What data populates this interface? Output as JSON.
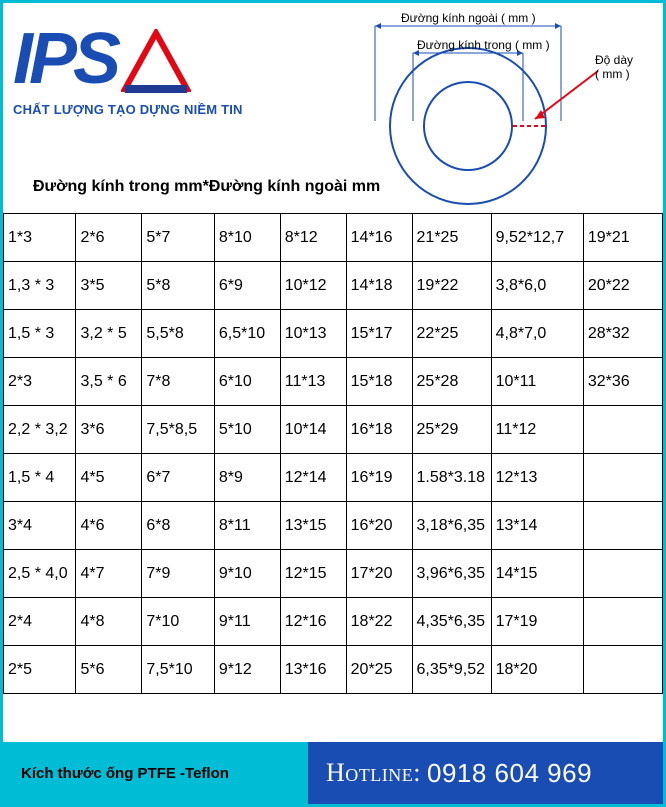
{
  "logo": {
    "text": "IPS",
    "tagline": "CHẤT LƯỢNG TẠO DỰNG NIỀM TIN",
    "logo_blue": "#1a4db3",
    "triangle_red": "#e30613",
    "triangle_blue": "#1f3a93"
  },
  "diagram": {
    "outer_label": "Đường kính ngoài ( mm )",
    "inner_label": "Đường kính trong ( mm )",
    "thickness_label_1": "Độ dày",
    "thickness_label_2": "( mm )",
    "stroke": "#1a4db3",
    "arrow_red": "#e30613",
    "dash_red": "#e30613"
  },
  "caption": "Đường kính trong mm*Đường kính ngoài mm",
  "table": {
    "rows": [
      [
        "1*3",
        "2*6",
        "5*7",
        "8*10",
        "8*12",
        "14*16",
        "21*25",
        "9,52*12,7",
        "19*21"
      ],
      [
        "1,3 * 3",
        "3*5",
        "5*8",
        "6*9",
        "10*12",
        "14*18",
        "19*22",
        "3,8*6,0",
        "20*22"
      ],
      [
        "1,5 * 3",
        "3,2 * 5",
        "5,5*8",
        "6,5*10",
        "10*13",
        "15*17",
        "22*25",
        "4,8*7,0",
        "28*32"
      ],
      [
        "2*3",
        "3,5 * 6",
        "7*8",
        "6*10",
        "11*13",
        "15*18",
        "25*28",
        "10*11",
        "32*36"
      ],
      [
        "2,2 * 3,2",
        "3*6",
        "7,5*8,5",
        "5*10",
        "10*14",
        "16*18",
        "25*29",
        "11*12",
        ""
      ],
      [
        "1,5 * 4",
        "4*5",
        "6*7",
        "8*9",
        "12*14",
        "16*19",
        "1.58*3.18",
        "12*13",
        ""
      ],
      [
        "3*4",
        "4*6",
        "6*8",
        "8*11",
        "13*15",
        "16*20",
        "3,18*6,35",
        "13*14",
        ""
      ],
      [
        "2,5 * 4,0",
        "4*7",
        "7*9",
        "9*10",
        "12*15",
        "17*20",
        "3,96*6,35",
        "14*15",
        ""
      ],
      [
        "2*4",
        "4*8",
        "7*10",
        "9*11",
        "12*16",
        "18*22",
        "4,35*6,35",
        "17*19",
        ""
      ],
      [
        "2*5",
        "5*6",
        "7,5*10",
        "9*12",
        "13*16",
        "20*25",
        "6,35*9,52",
        "18*20",
        ""
      ]
    ],
    "col_widths_pct": [
      11,
      10,
      11,
      10,
      10,
      10,
      12,
      14,
      12
    ]
  },
  "footer": {
    "left_text": "Kích thước ống PTFE -Teflon",
    "hotline_label": "Hotline:",
    "hotline_number": "0918 604 969",
    "left_bg": "#00bcd4",
    "right_bg": "#1a4db3"
  },
  "frame_color": "#00bcd4"
}
